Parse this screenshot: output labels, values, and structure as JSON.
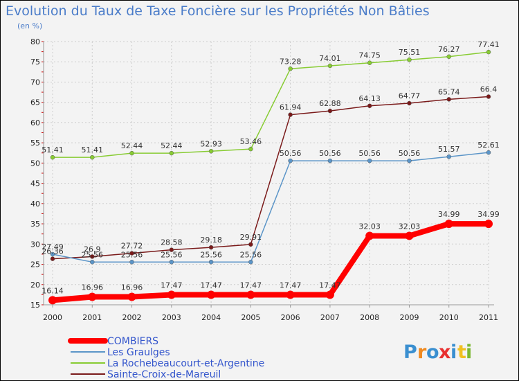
{
  "chart_data": {
    "type": "line",
    "title": "Evolution du Taux de Taxe Foncière sur les Propriétés Non Bâties",
    "subtitle": "(en %)",
    "ylim": [
      15,
      80
    ],
    "yticks": [
      15,
      20,
      25,
      30,
      35,
      40,
      45,
      50,
      55,
      60,
      65,
      70,
      75,
      80
    ],
    "categories": [
      "2000",
      "2001",
      "2002",
      "2003",
      "2004",
      "2005",
      "2006",
      "2007",
      "2008",
      "2009",
      "2010",
      "2011"
    ],
    "series": [
      {
        "name": "La Rochebeaucourt-et-Argentine",
        "color": "#88cc33",
        "values": [
          51.41,
          51.41,
          52.44,
          52.44,
          52.93,
          53.46,
          73.28,
          74.01,
          74.75,
          75.51,
          76.27,
          77.41
        ],
        "labels": [
          "51.41",
          "51.41",
          "52.44",
          "52.44",
          "52.93",
          "53.46",
          "73.28",
          "74.01",
          "74.75",
          "75.51",
          "76.27",
          "77.41"
        ]
      },
      {
        "name": "Sainte-Croix-de-Mareuil",
        "color": "#7a1a1a",
        "values": [
          26.36,
          26.9,
          27.72,
          28.58,
          29.18,
          29.91,
          61.94,
          62.88,
          64.13,
          64.77,
          65.74,
          66.4
        ],
        "labels": [
          "26.36",
          "26.9",
          "27.72",
          "28.58",
          "29.18",
          "29.91",
          "61.94",
          "62.88",
          "64.13",
          "64.77",
          "65.74",
          "66.4"
        ]
      },
      {
        "name": "Les Graulges",
        "color": "#5b95c8",
        "values": [
          27.49,
          25.56,
          25.56,
          25.56,
          25.56,
          25.56,
          50.56,
          50.56,
          50.56,
          50.56,
          51.57,
          52.61
        ],
        "labels": [
          "27.49",
          "25.56",
          "25.56",
          "25.56",
          "25.56",
          "25.56",
          "50.56",
          "50.56",
          "50.56",
          "50.56",
          "51.57",
          "52.61"
        ]
      },
      {
        "name": "COMBIERS",
        "color": "#ff0000",
        "values": [
          16.14,
          16.96,
          16.96,
          17.47,
          17.47,
          17.47,
          17.47,
          17.47,
          32.03,
          32.03,
          34.99,
          34.99
        ],
        "labels": [
          "16.14",
          "16.96",
          "16.96",
          "17.47",
          "17.47",
          "17.47",
          "17.47",
          "17.47",
          "32.03",
          "32.03",
          "34.99",
          "34.99"
        ]
      }
    ],
    "legend": [
      {
        "name": "COMBIERS",
        "color": "#ff0000"
      },
      {
        "name": "Les Graulges",
        "color": "#5b95c8"
      },
      {
        "name": "La Rochebeaucourt-et-Argentine",
        "color": "#88cc33"
      },
      {
        "name": "Sainte-Croix-de-Mareuil",
        "color": "#7a1a1a"
      }
    ],
    "legend_position": "bottom-left"
  },
  "logo": {
    "letters": [
      "P",
      "r",
      "o",
      "x",
      "i",
      "t",
      "i"
    ],
    "colors": [
      "#3a8fd0",
      "#f08a20",
      "#3a8fd0",
      "#e83030",
      "#3a8fd0",
      "#f0c020",
      "#7ab830"
    ]
  }
}
